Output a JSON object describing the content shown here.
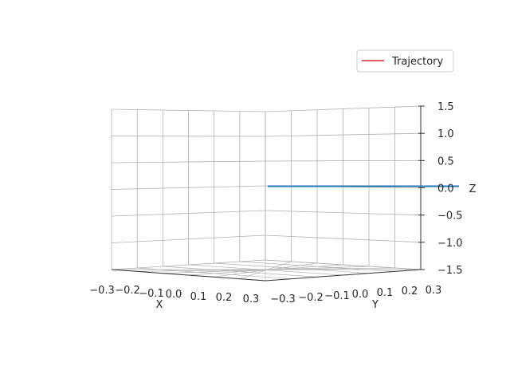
{
  "chart_data": {
    "type": "line",
    "projection": "3d",
    "title": "",
    "xlabel": "X",
    "ylabel": "Y",
    "zlabel": "Z",
    "xlim": [
      -0.3,
      0.3
    ],
    "ylim": [
      -0.3,
      0.3
    ],
    "zlim": [
      -1.5,
      1.5
    ],
    "x_ticks": [
      "−0.3",
      "−0.2",
      "−0.1",
      "0.0",
      "0.1",
      "0.2",
      "0.3"
    ],
    "y_ticks": [
      "−0.3",
      "−0.2",
      "−0.1",
      "0.0",
      "0.1",
      "0.2",
      "0.3"
    ],
    "z_ticks": [
      "1.5",
      "1.0",
      "0.5",
      "0.0",
      "−0.5",
      "−1.0",
      "−1.5"
    ],
    "grid": true,
    "legend": {
      "position": "upper right",
      "entries": [
        "Trajectory"
      ]
    },
    "series": [
      {
        "name": "Trajectory",
        "color": "#d62728",
        "x": [
          0.0
        ],
        "y": [
          0.0
        ],
        "z": [
          0.0
        ]
      }
    ],
    "extra_line": {
      "color": "#1f77b4"
    }
  }
}
